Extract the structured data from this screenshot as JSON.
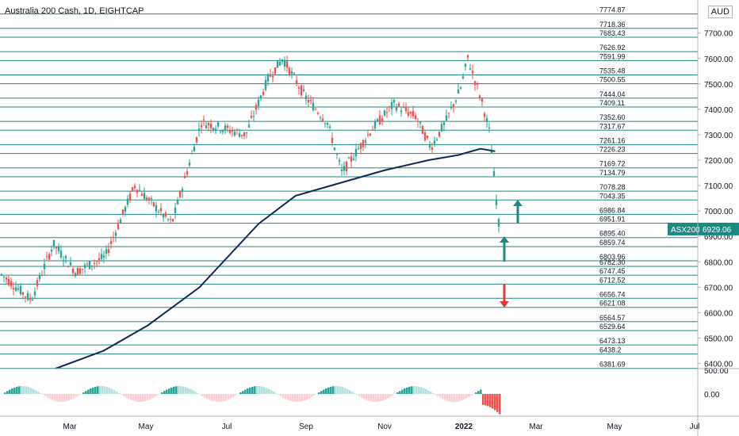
{
  "header": {
    "title": "Australia 200 Cash, 1D, EIGHTCAP",
    "currency": "AUD"
  },
  "chart_data": {
    "type": "candlestick",
    "y_ticks": [
      "7700.00",
      "7600.00",
      "7500.00",
      "7400.00",
      "7300.00",
      "7200.00",
      "7100.00",
      "7000.00",
      "6900.00",
      "6800.00",
      "6700.00",
      "6600.00",
      "6500.00",
      "6400.00"
    ],
    "ylim": [
      6380,
      7830
    ],
    "x_ticks": [
      "Mar",
      "May",
      "Jul",
      "Sep",
      "Nov",
      "2022",
      "Mar",
      "May",
      "Jul"
    ],
    "levels": [
      "7774.87",
      "7718.36",
      "7683.43",
      "7626.92",
      "7591.99",
      "7535.48",
      "7500.55",
      "7444.04",
      "7409.11",
      "7352.60",
      "7317.67",
      "7261.16",
      "7226.23",
      "7169.72",
      "7134.79",
      "7078.28",
      "7043.35",
      "6986.84",
      "6951.91",
      "6895.40",
      "6859.74",
      "6803.96",
      "6782.30",
      "6747.45",
      "6712.52",
      "6656.74",
      "6621.08",
      "6564.57",
      "6529.64",
      "6473.13",
      "6438.2",
      "6381.69"
    ],
    "price_label": {
      "symbol": "ASX200",
      "value": "6929.06"
    },
    "arrows": [
      {
        "direction": "up",
        "color": "#1a8a84"
      },
      {
        "direction": "up",
        "color": "#1a8a84"
      },
      {
        "direction": "down",
        "color": "#e53935"
      }
    ],
    "ma_line": [
      {
        "x": 0.075,
        "y": 6380
      },
      {
        "x": 0.14,
        "y": 6450
      },
      {
        "x": 0.2,
        "y": 6550
      },
      {
        "x": 0.27,
        "y": 6700
      },
      {
        "x": 0.35,
        "y": 6950
      },
      {
        "x": 0.4,
        "y": 7060
      },
      {
        "x": 0.46,
        "y": 7110
      },
      {
        "x": 0.52,
        "y": 7160
      },
      {
        "x": 0.58,
        "y": 7200
      },
      {
        "x": 0.62,
        "y": 7220
      },
      {
        "x": 0.65,
        "y": 7245
      },
      {
        "x": 0.67,
        "y": 7235
      }
    ],
    "oscillator": {
      "ticks": [
        "500.00",
        "0.00"
      ]
    }
  }
}
